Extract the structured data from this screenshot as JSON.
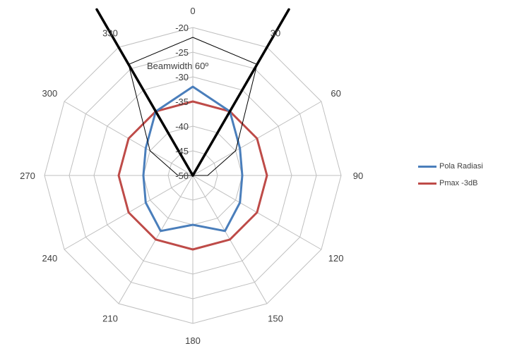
{
  "chart_data": {
    "type": "radar",
    "angle_ticks": [
      "0",
      "30",
      "60",
      "90",
      "120",
      "150",
      "180",
      "210",
      "240",
      "270",
      "300",
      "330"
    ],
    "radial_ticks": [
      "-20",
      "-25",
      "-30",
      "-35",
      "-40",
      "-45",
      "-50"
    ],
    "rlim": [
      -50,
      -20
    ],
    "grid": true,
    "series": [
      {
        "name": "Pola Radiasi",
        "color": "#4a7ebb",
        "theta": [
          0,
          30,
          60,
          90,
          120,
          150,
          180,
          210,
          240,
          270,
          300,
          330
        ],
        "values": [
          -32,
          -35,
          -39,
          -40,
          -39,
          -37,
          -40,
          -37,
          -39,
          -40,
          -39,
          -35
        ]
      },
      {
        "name": "Pmax -3dB",
        "color": "#be4b48",
        "theta": [
          0,
          30,
          60,
          90,
          120,
          150,
          180,
          210,
          240,
          270,
          300,
          330
        ],
        "values": [
          -35,
          -35,
          -35,
          -35,
          -35,
          -35,
          -35,
          -35,
          -35,
          -35,
          -35,
          -35
        ]
      },
      {
        "name": "",
        "color": "#000000",
        "theta": [
          0,
          30,
          60,
          90,
          120,
          150,
          180,
          210,
          240,
          270,
          300,
          330
        ],
        "values": [
          -22,
          -24,
          -40,
          -47,
          -50,
          -50,
          -50,
          -50,
          -50,
          -47,
          -40,
          -24
        ]
      }
    ],
    "beam_lines": {
      "theta": [
        -30,
        30
      ],
      "color": "#000000"
    },
    "annotation": "Beamwidth 60º",
    "legend_position": "right"
  }
}
